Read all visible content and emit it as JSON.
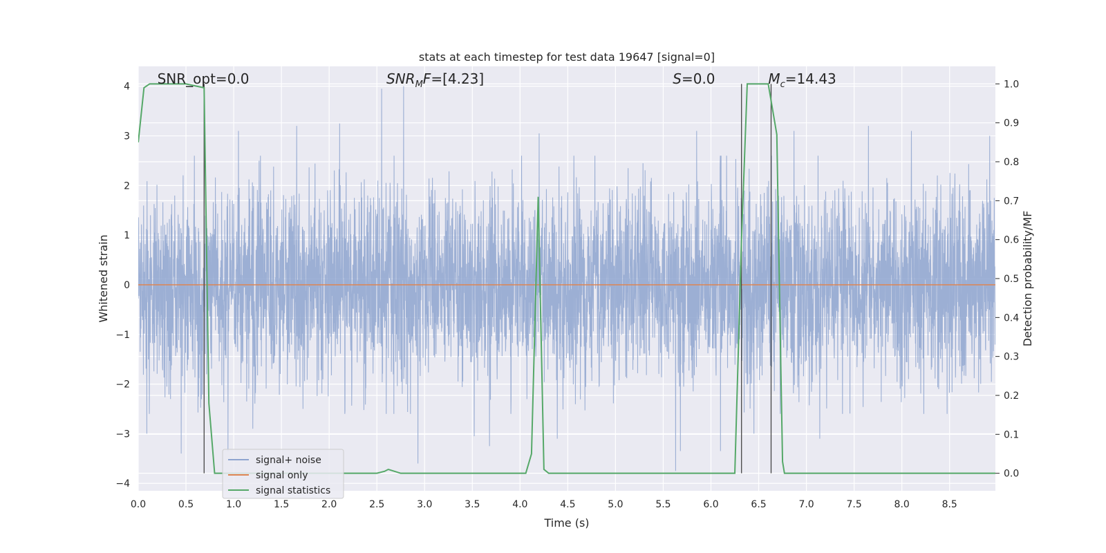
{
  "chart_data": {
    "type": "line",
    "title": "stats at each timestep for test data 19647 [signal=0]",
    "xlabel": "Time (s)",
    "ylabel": "Whitened strain",
    "y2label": "Detection probability/MF",
    "xlim": [
      0,
      8.98
    ],
    "ylim": [
      -4.15,
      4.4
    ],
    "y2lim": [
      -0.045,
      1.045
    ],
    "xticks": [
      0.0,
      0.5,
      1.0,
      1.5,
      2.0,
      2.5,
      3.0,
      3.5,
      4.0,
      4.5,
      5.0,
      5.5,
      6.0,
      6.5,
      7.0,
      7.5,
      8.0,
      8.5
    ],
    "xtick_labels": [
      "0.0",
      "0.5",
      "1.0",
      "1.5",
      "2.0",
      "2.5",
      "3.0",
      "3.5",
      "4.0",
      "4.5",
      "5.0",
      "5.5",
      "6.0",
      "6.5",
      "7.0",
      "7.5",
      "8.0",
      "8.5"
    ],
    "yticks": [
      4,
      3,
      2,
      1,
      0,
      -1,
      -2,
      -3,
      -4
    ],
    "ytick_labels": [
      "4",
      "3",
      "2",
      "1",
      "0",
      "−1",
      "−2",
      "−3",
      "−4"
    ],
    "y2ticks": [
      1.0,
      0.9,
      0.8,
      0.7,
      0.6,
      0.5,
      0.4,
      0.3,
      0.2,
      0.1,
      0.0
    ],
    "y2tick_labels": [
      "1.0",
      "0.9",
      "0.8",
      "0.7",
      "0.6",
      "0.5",
      "0.4",
      "0.3",
      "0.2",
      "0.1",
      "0.0"
    ],
    "grid": true,
    "legend_position": "lower-left",
    "annotations": [
      {
        "text": "SNR_opt=0.0",
        "x": 0.2,
        "y": 4.15
      },
      {
        "text": "SNR",
        "sub": "M",
        "suffix": "F=[4.23]",
        "italic": true,
        "x": 2.6,
        "y": 4.15
      },
      {
        "text": "S",
        "suffix": "=0.0",
        "italic": true,
        "x": 5.6,
        "y": 4.15
      },
      {
        "text": "M",
        "sub": "c",
        "suffix": "=14.43",
        "italic": true,
        "x": 6.6,
        "y": 4.15
      }
    ],
    "vertical_lines": [
      0.69,
      6.32,
      6.63
    ],
    "vertical_line_range": [
      0.0,
      1.0
    ],
    "series": [
      {
        "name": "signal+ noise",
        "axis": "left",
        "color": "#8ea4cf",
        "kind": "noise",
        "sample_rate": 500,
        "typical_envelope": [
          -1.45,
          1.7
        ],
        "spikes": [
          {
            "x": 0.45,
            "y": -3.4
          },
          {
            "x": 0.09,
            "y": -3.0
          },
          {
            "x": 0.94,
            "y": -3.35
          },
          {
            "x": 1.66,
            "y": 3.2
          },
          {
            "x": 1.05,
            "y": 3.1
          },
          {
            "x": 2.11,
            "y": 3.25
          },
          {
            "x": 2.55,
            "y": 3.95
          },
          {
            "x": 2.78,
            "y": 4.0
          },
          {
            "x": 2.93,
            "y": -3.6
          },
          {
            "x": 3.52,
            "y": -3.05
          },
          {
            "x": 3.68,
            "y": -3.25
          },
          {
            "x": 4.2,
            "y": 3.05
          },
          {
            "x": 4.39,
            "y": -3.1
          },
          {
            "x": 5.63,
            "y": -3.75
          },
          {
            "x": 5.68,
            "y": -3.35
          },
          {
            "x": 5.85,
            "y": 3.1
          },
          {
            "x": 6.45,
            "y": -3.0
          },
          {
            "x": 6.87,
            "y": 3.1
          },
          {
            "x": 7.14,
            "y": -3.1
          },
          {
            "x": 7.65,
            "y": 3.2
          },
          {
            "x": 8.1,
            "y": 3.1
          },
          {
            "x": 8.92,
            "y": 3.0
          },
          {
            "x": 1.2,
            "y": -2.9
          },
          {
            "x": 6.1,
            "y": -3.35
          }
        ]
      },
      {
        "name": "signal only",
        "axis": "left",
        "color": "#dd8452",
        "x": [
          0,
          8.98
        ],
        "y": [
          0,
          0
        ]
      },
      {
        "name": "signal statistics",
        "axis": "right",
        "color": "#55a868",
        "x": [
          0.0,
          0.06,
          0.12,
          0.5,
          0.69,
          0.74,
          0.8,
          2.5,
          2.58,
          2.62,
          2.75,
          4.06,
          4.12,
          4.19,
          4.25,
          4.3,
          6.25,
          6.32,
          6.38,
          6.6,
          6.69,
          6.73,
          6.75,
          6.77,
          8.98
        ],
        "y": [
          0.85,
          0.99,
          1.0,
          1.0,
          0.99,
          0.18,
          0.0,
          0.0,
          0.005,
          0.01,
          0.0,
          0.0,
          0.05,
          0.71,
          0.01,
          0.0,
          0.0,
          0.6,
          1.0,
          1.0,
          0.87,
          0.3,
          0.03,
          0.0,
          0.0
        ]
      }
    ]
  }
}
